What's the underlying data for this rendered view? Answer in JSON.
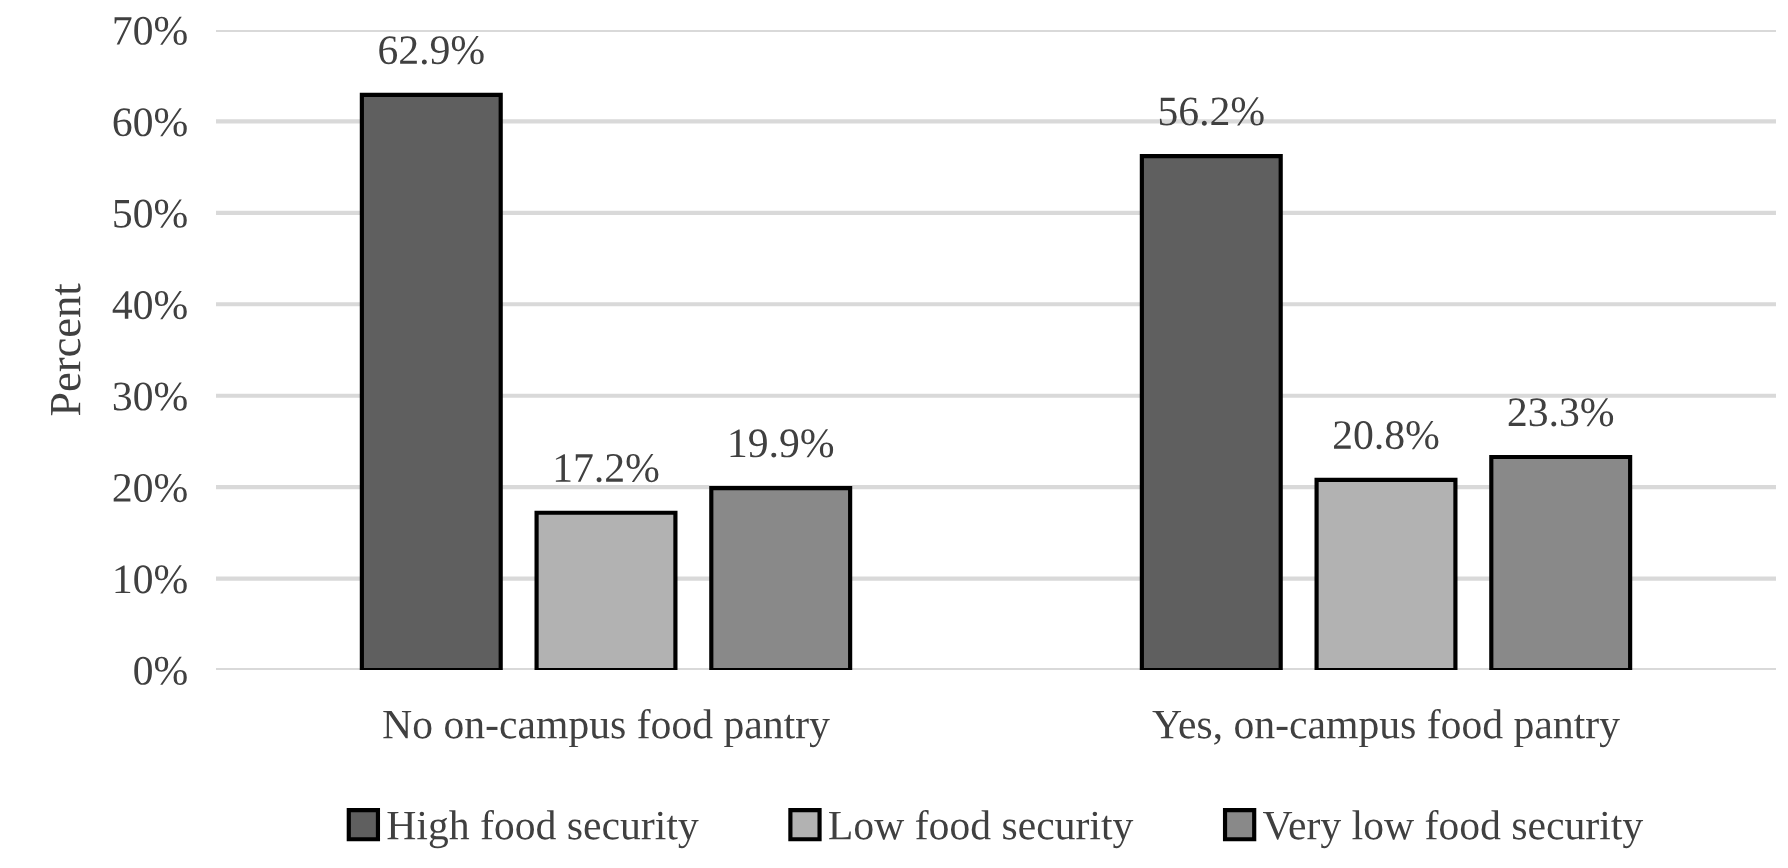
{
  "chart_data": {
    "type": "bar",
    "ylabel": "Percent",
    "categories": [
      "No on-campus food pantry",
      "Yes, on-campus food pantry"
    ],
    "series": [
      {
        "name": "High food security",
        "color": "#5f5f5f",
        "values": [
          62.9,
          56.2
        ],
        "value_labels": [
          "62.9%",
          "56.2%"
        ]
      },
      {
        "name": "Low food security",
        "color": "#b2b2b2",
        "values": [
          17.2,
          20.8
        ],
        "value_labels": [
          "17.2%",
          "20.8%"
        ]
      },
      {
        "name": "Very low food security",
        "color": "#898989",
        "values": [
          19.9,
          23.3
        ],
        "value_labels": [
          "19.9%",
          "23.3%"
        ]
      }
    ],
    "ylim": [
      0,
      70
    ],
    "yticks": [
      {
        "value": 0,
        "label": "0%"
      },
      {
        "value": 10,
        "label": "10%"
      },
      {
        "value": 20,
        "label": "20%"
      },
      {
        "value": 30,
        "label": "30%"
      },
      {
        "value": 40,
        "label": "40%"
      },
      {
        "value": 50,
        "label": "50%"
      },
      {
        "value": 60,
        "label": "60%"
      },
      {
        "value": 70,
        "label": "70%"
      }
    ],
    "grid": "y",
    "legend": "bottom"
  }
}
